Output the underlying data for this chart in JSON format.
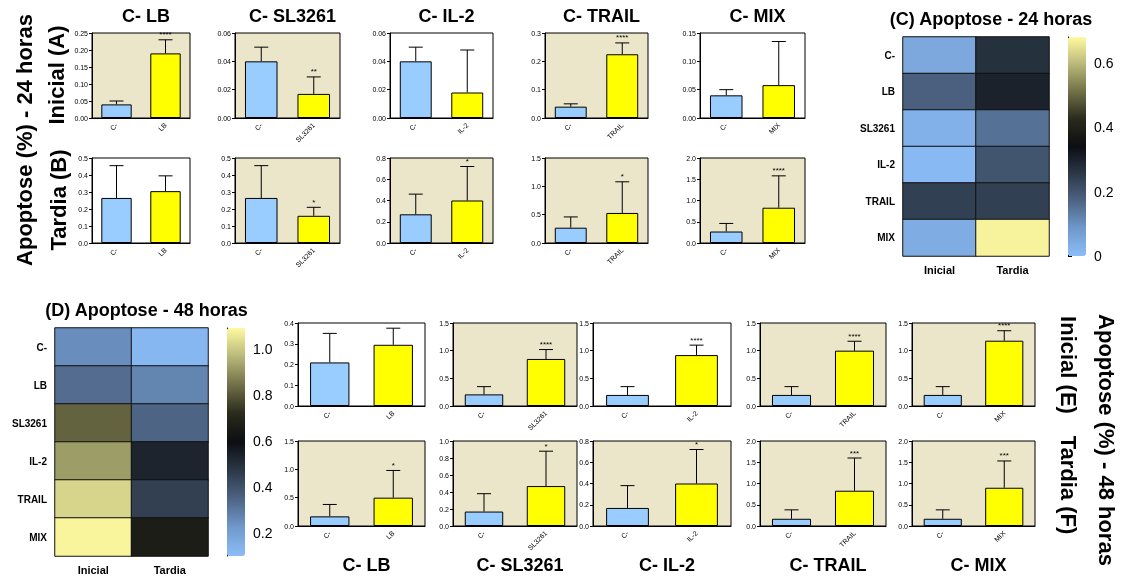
{
  "chart_data": [
    {
      "type": "bar",
      "title": "C- LB",
      "categories": [
        "C-",
        "LB"
      ],
      "values": [
        0.04,
        0.19
      ],
      "colors": [
        "#99ccff",
        "#ffff00"
      ],
      "errors": [
        [
          0.04,
          0.05
        ],
        [
          0.19,
          0.23
        ]
      ],
      "ylim": [
        0,
        0.25
      ],
      "yticks": [
        {
          "value": 0,
          "label": "0.00"
        },
        0.05,
        {
          "value": 0.1,
          "label": "0.10"
        },
        0.15,
        {
          "value": 0.2,
          "label": "0.20"
        },
        0.25
      ],
      "annotations": [
        "Apoptose (%) - 24 horas",
        "Inicial (A)",
        {
          "text": "****",
          "x": "LB",
          "y": 0.23
        }
      ]
    },
    {
      "type": "bar",
      "title": "C- SL3261",
      "categories": [
        "C-",
        "SL3261"
      ],
      "values": [
        0.04,
        0.017
      ],
      "colors": [
        "#99ccff",
        "#ffff00"
      ],
      "errors": [
        [
          0.04,
          0.05
        ],
        [
          0.017,
          0.029
        ]
      ],
      "ylim": [
        0,
        0.06
      ],
      "yticks": [
        {
          "value": 0,
          "label": "0.00"
        },
        0.02,
        0.04,
        0.06
      ],
      "annotations": [
        {
          "text": "**",
          "x": "SL3261",
          "y": 0.029
        }
      ]
    },
    {
      "type": "bar",
      "title": "C- IL-2",
      "categories": [
        "C-",
        "IL-2"
      ],
      "values": [
        0.04,
        0.018
      ],
      "colors": [
        "#99ccff",
        "#ffff00"
      ],
      "errors": [
        [
          0.04,
          0.05
        ],
        [
          0.018,
          0.048
        ]
      ],
      "ylim": [
        0,
        0.06
      ],
      "yticks": [
        {
          "value": 0,
          "label": "0.00"
        },
        0.02,
        0.04,
        0.06
      ]
    },
    {
      "type": "bar",
      "title": "C- TRAIL",
      "categories": [
        "C-",
        "TRAIL"
      ],
      "values": [
        0.04,
        0.225
      ],
      "colors": [
        "#99ccff",
        "#ffff00"
      ],
      "errors": [
        [
          0.04,
          0.05
        ],
        [
          0.225,
          0.265
        ]
      ],
      "ylim": [
        0,
        0.3
      ],
      "yticks": [
        {
          "value": 0,
          "label": "0.0"
        },
        0.1,
        0.2,
        0.3
      ],
      "annotations": [
        {
          "text": "****",
          "x": "TRAIL",
          "y": 0.265
        }
      ]
    },
    {
      "type": "bar",
      "title": "C- MIX",
      "categories": [
        "C-",
        "MIX"
      ],
      "values": [
        0.04,
        0.058
      ],
      "colors": [
        "#99ccff",
        "#ffff00"
      ],
      "errors": [
        [
          0.04,
          0.05
        ],
        [
          0.058,
          0.135
        ]
      ],
      "ylim": [
        0,
        0.15
      ],
      "yticks": [
        {
          "value": 0,
          "label": "0.00"
        },
        0.05,
        {
          "value": 0.1,
          "label": "0.10"
        },
        0.15
      ]
    },
    {
      "type": "heatmap",
      "title": "(C) Apoptose - 24 horas",
      "categories": [
        "Inicial",
        "Tardia"
      ],
      "y_categories": [
        "C-",
        "LB",
        "SL3261",
        "IL-2",
        "TRAIL",
        "MIX"
      ],
      "cells": [
        [
          0.05,
          0.27
        ],
        [
          0.18,
          0.3
        ],
        [
          0.03,
          0.15
        ],
        [
          0.01,
          0.2
        ],
        [
          0.24,
          0.24
        ],
        [
          0.04,
          0.67
        ]
      ],
      "clim": [
        0,
        0.68
      ],
      "cticks": [
        0,
        0.2,
        0.4,
        0.6
      ]
    },
    {
      "type": "bar",
      "categories": [
        "C-",
        "LB"
      ],
      "values": [
        0.265,
        0.305
      ],
      "colors": [
        "#99ccff",
        "#ffff00"
      ],
      "errors": [
        [
          0.265,
          0.455
        ],
        [
          0.305,
          0.395
        ]
      ],
      "ylim": [
        0,
        0.5
      ],
      "yticks": [
        {
          "value": 0,
          "label": "0.0"
        },
        0.1,
        0.2,
        0.3,
        0.4,
        0.5
      ],
      "annotations": [
        "Tardia (B)"
      ]
    },
    {
      "type": "bar",
      "categories": [
        "C-",
        "SL3261"
      ],
      "values": [
        0.265,
        0.16
      ],
      "colors": [
        "#99ccff",
        "#ffff00"
      ],
      "errors": [
        [
          0.265,
          0.455
        ],
        [
          0.16,
          0.21
        ]
      ],
      "ylim": [
        0,
        0.5
      ],
      "yticks": [
        {
          "value": 0,
          "label": "0.0"
        },
        0.1,
        0.2,
        0.3,
        0.4,
        0.5
      ],
      "annotations": [
        {
          "text": "*",
          "x": "SL3261",
          "y": 0.21
        }
      ]
    },
    {
      "type": "bar",
      "categories": [
        "C-",
        "IL-2"
      ],
      "values": [
        0.27,
        0.4
      ],
      "colors": [
        "#99ccff",
        "#ffff00"
      ],
      "errors": [
        [
          0.27,
          0.46
        ],
        [
          0.4,
          0.72
        ]
      ],
      "ylim": [
        0,
        0.8
      ],
      "yticks": [
        {
          "value": 0,
          "label": "0.0"
        },
        0.2,
        0.4,
        0.6,
        0.8
      ],
      "annotations": [
        {
          "text": "*",
          "x": "IL-2",
          "y": 0.72
        }
      ]
    },
    {
      "type": "bar",
      "categories": [
        "C-",
        "TRAIL"
      ],
      "values": [
        0.27,
        0.53
      ],
      "colors": [
        "#99ccff",
        "#ffff00"
      ],
      "errors": [
        [
          0.27,
          0.46
        ],
        [
          0.53,
          1.08
        ]
      ],
      "ylim": [
        0,
        1.5
      ],
      "yticks": [
        {
          "value": 0,
          "label": "0.0"
        },
        0.5,
        {
          "value": 1,
          "label": "1.0"
        },
        1.5
      ],
      "annotations": [
        {
          "text": "*",
          "x": "TRAIL",
          "y": 1.08
        }
      ]
    },
    {
      "type": "bar",
      "categories": [
        "C-",
        "MIX"
      ],
      "values": [
        0.27,
        0.83
      ],
      "colors": [
        "#99ccff",
        "#ffff00"
      ],
      "errors": [
        [
          0.27,
          0.46
        ],
        [
          0.83,
          1.58
        ]
      ],
      "ylim": [
        0,
        2
      ],
      "yticks": [
        {
          "value": 0,
          "label": "0.0"
        },
        0.5,
        {
          "value": 1,
          "label": "1.0"
        },
        1.5,
        {
          "value": 2,
          "label": "2.0"
        }
      ],
      "annotations": [
        {
          "text": "****",
          "x": "MIX",
          "y": 1.58
        }
      ]
    },
    {
      "type": "heatmap",
      "title": "(D) Apoptose - 48 horas",
      "categories": [
        "Inicial",
        "Tardia"
      ],
      "y_categories": [
        "C-",
        "LB",
        "SL3261",
        "IL-2",
        "TRAIL",
        "MIX"
      ],
      "cells": [
        [
          0.25,
          0.12
        ],
        [
          0.33,
          0.27
        ],
        [
          0.82,
          0.35
        ],
        [
          0.92,
          0.53
        ],
        [
          1.02,
          0.45
        ],
        [
          1.08,
          0.66
        ]
      ],
      "clim": [
        0.1,
        1.09
      ],
      "cticks": [
        0.2,
        0.4,
        0.6,
        0.8,
        {
          "value": 1,
          "label": "1.0"
        }
      ]
    },
    {
      "type": "bar",
      "categories": [
        "C-",
        "LB"
      ],
      "values": [
        0.21,
        0.295
      ],
      "colors": [
        "#99ccff",
        "#ffff00"
      ],
      "errors": [
        [
          0.21,
          0.35
        ],
        [
          0.295,
          0.375
        ]
      ],
      "ylim": [
        0,
        0.4
      ],
      "yticks": [
        {
          "value": 0,
          "label": "0.0"
        },
        0.1,
        0.2,
        0.3,
        0.4
      ]
    },
    {
      "type": "bar",
      "categories": [
        "C-",
        "SL3261"
      ],
      "values": [
        0.21,
        0.85
      ],
      "colors": [
        "#99ccff",
        "#ffff00"
      ],
      "errors": [
        [
          0.21,
          0.35
        ],
        [
          0.85,
          1.02
        ]
      ],
      "ylim": [
        0,
        1.5
      ],
      "yticks": [
        {
          "value": 0,
          "label": "0.0"
        },
        0.5,
        {
          "value": 1,
          "label": "1.0"
        },
        1.5
      ],
      "annotations": [
        {
          "text": "****",
          "x": "SL3261",
          "y": 1.02
        }
      ]
    },
    {
      "type": "bar",
      "categories": [
        "C-",
        "IL-2"
      ],
      "values": [
        0.2,
        0.92
      ],
      "colors": [
        "#99ccff",
        "#ffff00"
      ],
      "errors": [
        [
          0.2,
          0.35
        ],
        [
          0.92,
          1.1
        ]
      ],
      "ylim": [
        0,
        1.5
      ],
      "yticks": [
        {
          "value": 0,
          "label": "0.0"
        },
        0.5,
        {
          "value": 1,
          "label": "1.0"
        },
        1.5
      ],
      "annotations": [
        {
          "text": "****",
          "x": "IL-2",
          "y": 1.1
        }
      ]
    },
    {
      "type": "bar",
      "categories": [
        "C-",
        "TRAIL"
      ],
      "values": [
        0.2,
        1.0
      ],
      "colors": [
        "#99ccff",
        "#ffff00"
      ],
      "errors": [
        [
          0.2,
          0.35
        ],
        [
          1.0,
          1.17
        ]
      ],
      "ylim": [
        0,
        1.5
      ],
      "yticks": [
        {
          "value": 0,
          "label": "0.0"
        },
        0.5,
        {
          "value": 1,
          "label": "1.0"
        },
        1.5
      ],
      "annotations": [
        {
          "text": "****",
          "x": "TRAIL",
          "y": 1.17
        }
      ]
    },
    {
      "type": "bar",
      "categories": [
        "C-",
        "MIX"
      ],
      "values": [
        0.2,
        1.18
      ],
      "colors": [
        "#99ccff",
        "#ffff00"
      ],
      "errors": [
        [
          0.2,
          0.35
        ],
        [
          1.18,
          1.36
        ]
      ],
      "ylim": [
        0,
        1.5
      ],
      "yticks": [
        {
          "value": 0,
          "label": "0.0"
        },
        0.5,
        {
          "value": 1,
          "label": "1.0"
        },
        1.5
      ],
      "annotations": [
        "Apoptose (%) - 48 horas",
        "Inicial (E)",
        {
          "text": "****",
          "x": "MIX",
          "y": 1.36
        }
      ]
    },
    {
      "type": "bar",
      "title": "C- LB",
      "categories": [
        "C-",
        "LB"
      ],
      "values": [
        0.17,
        0.5
      ],
      "colors": [
        "#99ccff",
        "#ffff00"
      ],
      "errors": [
        [
          0.17,
          0.38
        ],
        [
          0.5,
          0.98
        ]
      ],
      "ylim": [
        0,
        1.5
      ],
      "yticks": [
        {
          "value": 0,
          "label": "0.0"
        },
        0.5,
        {
          "value": 1,
          "label": "1.0"
        },
        1.5
      ],
      "annotations": [
        {
          "text": "*",
          "x": "LB",
          "y": 0.98
        }
      ]
    },
    {
      "type": "bar",
      "title": "C- SL3261",
      "categories": [
        "C-",
        "SL3261"
      ],
      "values": [
        0.17,
        0.47
      ],
      "colors": [
        "#99ccff",
        "#ffff00"
      ],
      "errors": [
        [
          0.17,
          0.38
        ],
        [
          0.47,
          0.88
        ]
      ],
      "ylim": [
        0,
        1
      ],
      "yticks": [
        {
          "value": 0,
          "label": "0.0"
        },
        0.2,
        0.4,
        0.6,
        0.8,
        {
          "value": 1,
          "label": "1.0"
        }
      ],
      "annotations": [
        {
          "text": "*",
          "x": "SL3261",
          "y": 0.88
        }
      ]
    },
    {
      "type": "bar",
      "title": "C- IL-2",
      "categories": [
        "C-",
        "IL-2"
      ],
      "values": [
        0.17,
        0.4
      ],
      "colors": [
        "#99ccff",
        "#ffff00"
      ],
      "errors": [
        [
          0.17,
          0.38
        ],
        [
          0.4,
          0.72
        ]
      ],
      "ylim": [
        0,
        0.8
      ],
      "yticks": [
        {
          "value": 0,
          "label": "0.0"
        },
        0.2,
        0.4,
        0.6,
        0.8
      ],
      "annotations": [
        {
          "text": "*",
          "x": "IL-2",
          "y": 0.72
        }
      ]
    },
    {
      "type": "bar",
      "title": "C- TRAIL",
      "categories": [
        "C-",
        "TRAIL"
      ],
      "values": [
        0.17,
        0.83
      ],
      "colors": [
        "#99ccff",
        "#ffff00"
      ],
      "errors": [
        [
          0.17,
          0.38
        ],
        [
          0.83,
          1.6
        ]
      ],
      "ylim": [
        0,
        2
      ],
      "yticks": [
        {
          "value": 0,
          "label": "0.0"
        },
        0.5,
        {
          "value": 1,
          "label": "1.0"
        },
        1.5,
        {
          "value": 2,
          "label": "2.0"
        }
      ],
      "annotations": [
        {
          "text": "***",
          "x": "TRAIL",
          "y": 1.6
        }
      ]
    },
    {
      "type": "bar",
      "title": "C- MIX",
      "categories": [
        "C-",
        "MIX"
      ],
      "values": [
        0.17,
        0.9
      ],
      "colors": [
        "#99ccff",
        "#ffff00"
      ],
      "errors": [
        [
          0.17,
          0.38
        ],
        [
          0.9,
          1.53
        ]
      ],
      "ylim": [
        0,
        2
      ],
      "yticks": [
        {
          "value": 0,
          "label": "0.0"
        },
        0.5,
        {
          "value": 1,
          "label": "1.0"
        },
        1.5,
        {
          "value": 2,
          "label": "2.0"
        }
      ],
      "annotations": [
        "Tardia (F)",
        {
          "text": "***",
          "x": "MIX",
          "y": 1.53
        }
      ]
    }
  ]
}
